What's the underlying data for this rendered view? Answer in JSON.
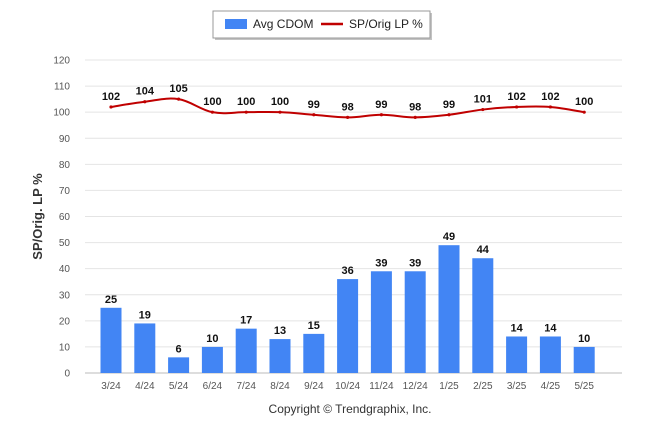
{
  "chart_data": {
    "type": "bar",
    "categories": [
      "3/24",
      "4/24",
      "5/24",
      "6/24",
      "7/24",
      "8/24",
      "9/24",
      "10/24",
      "11/24",
      "12/24",
      "1/25",
      "2/25",
      "3/25",
      "4/25",
      "5/25"
    ],
    "series": [
      {
        "name": "Avg CDOM",
        "type": "bar",
        "color": "#4285f4",
        "values": [
          25,
          19,
          6,
          10,
          17,
          13,
          15,
          36,
          39,
          39,
          49,
          44,
          14,
          14,
          10
        ]
      },
      {
        "name": "SP/Orig LP %",
        "type": "line",
        "color": "#c00000",
        "values": [
          102,
          104,
          105,
          100,
          100,
          100,
          99,
          98,
          99,
          98,
          99,
          101,
          102,
          102,
          100
        ]
      }
    ],
    "ylabel": "SP/Orig. LP %",
    "ylim": [
      0,
      120
    ],
    "yticks": [
      0,
      10,
      20,
      30,
      40,
      50,
      60,
      70,
      80,
      90,
      100,
      110,
      120
    ],
    "grid": true,
    "legend_position": "top-center",
    "footer": "Copyright © Trendgraphix, Inc."
  }
}
